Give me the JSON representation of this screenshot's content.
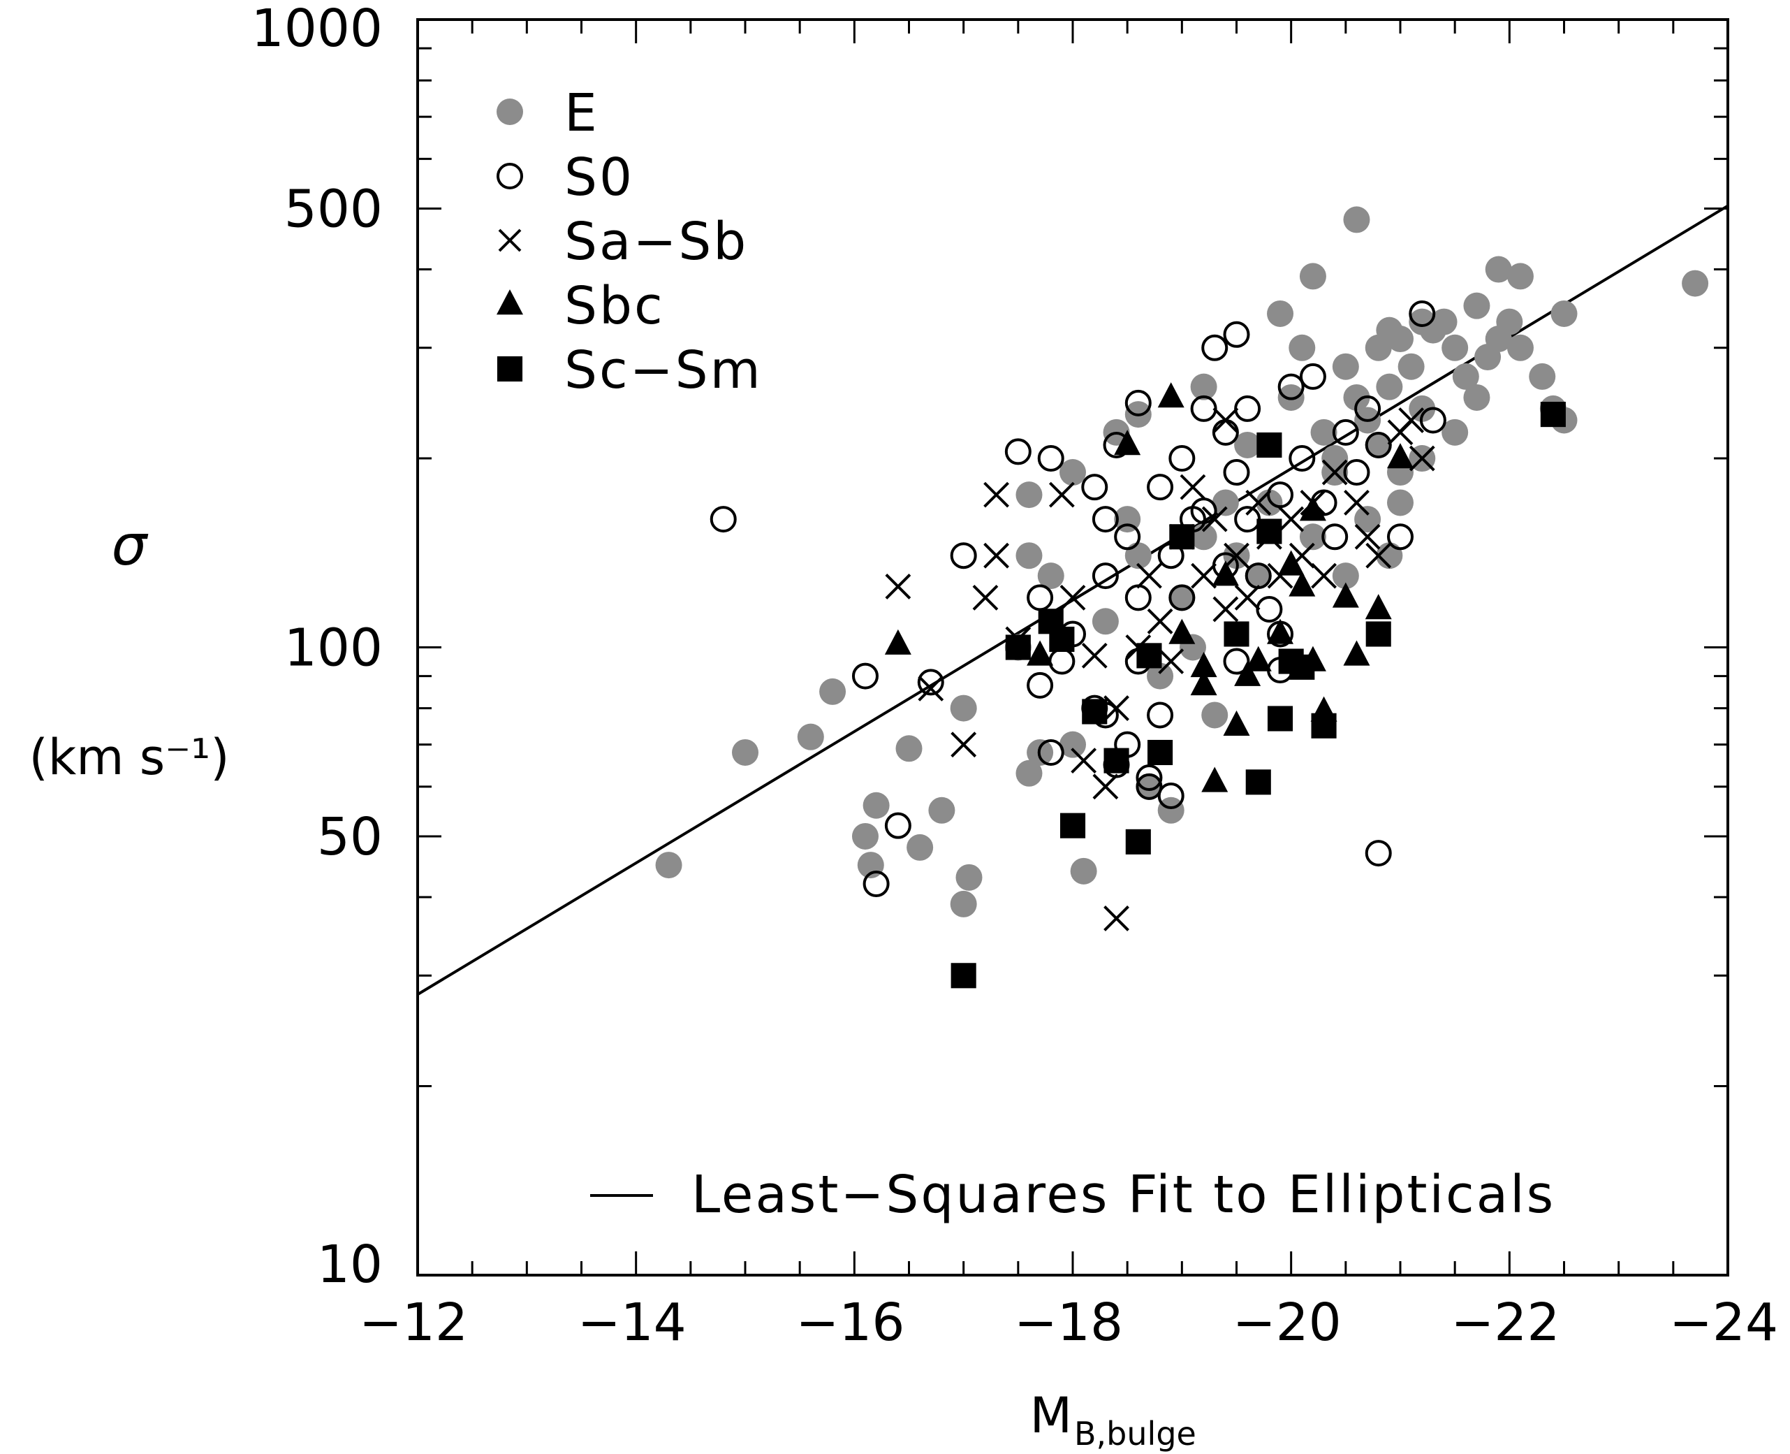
{
  "chart_data": {
    "type": "scatter",
    "title": "",
    "xlabel": "M",
    "xlabel_sub": "B,bulge",
    "ylabel": "σ",
    "ylabel_units": "(km s⁻¹)",
    "xlim": [
      -12,
      -24
    ],
    "ylim": [
      10,
      1000
    ],
    "y_scale": "log",
    "x_ticks": [
      -12,
      -14,
      -16,
      -18,
      -20,
      -22,
      -24
    ],
    "x_tick_labels": [
      "−12",
      "−14",
      "−16",
      "−18",
      "−20",
      "−22",
      "−24"
    ],
    "y_ticks": [
      10,
      50,
      100,
      500,
      1000
    ],
    "y_tick_labels": [
      "10",
      "50",
      "100",
      "500",
      "1000"
    ],
    "grid": false,
    "legend_position": "top-left",
    "colors": {
      "E": "#8c8c8c",
      "other": "#000000"
    },
    "series": [
      {
        "name": "E",
        "marker": "filled-circle",
        "points": [
          [
            -14.3,
            45
          ],
          [
            -15.0,
            68
          ],
          [
            -15.6,
            72
          ],
          [
            -15.8,
            85
          ],
          [
            -16.1,
            50
          ],
          [
            -16.2,
            56
          ],
          [
            -16.15,
            45
          ],
          [
            -16.5,
            69
          ],
          [
            -16.6,
            48
          ],
          [
            -16.8,
            55
          ],
          [
            -17.0,
            80
          ],
          [
            -17.0,
            39
          ],
          [
            -17.05,
            43
          ],
          [
            -17.6,
            63
          ],
          [
            -17.7,
            68
          ],
          [
            -18.0,
            70
          ],
          [
            -18.1,
            44
          ],
          [
            -17.5,
            100
          ],
          [
            -17.8,
            130
          ],
          [
            -17.6,
            140
          ],
          [
            -17.6,
            175
          ],
          [
            -18.0,
            190
          ],
          [
            -18.3,
            110
          ],
          [
            -18.4,
            220
          ],
          [
            -18.5,
            160
          ],
          [
            -18.6,
            140
          ],
          [
            -18.8,
            90
          ],
          [
            -18.7,
            60
          ],
          [
            -18.9,
            55
          ],
          [
            -19.0,
            120
          ],
          [
            -19.1,
            100
          ],
          [
            -19.2,
            150
          ],
          [
            -19.3,
            78
          ],
          [
            -19.5,
            140
          ],
          [
            -19.4,
            170
          ],
          [
            -19.6,
            210
          ],
          [
            -19.7,
            130
          ],
          [
            -19.8,
            170
          ],
          [
            -19.9,
            340
          ],
          [
            -20.0,
            250
          ],
          [
            -20.1,
            300
          ],
          [
            -20.2,
            150
          ],
          [
            -20.3,
            220
          ],
          [
            -20.4,
            190
          ],
          [
            -20.5,
            280
          ],
          [
            -20.6,
            250
          ],
          [
            -20.7,
            230
          ],
          [
            -20.8,
            300
          ],
          [
            -20.9,
            260
          ],
          [
            -21.0,
            310
          ],
          [
            -21.1,
            280
          ],
          [
            -21.2,
            240
          ],
          [
            -21.3,
            320
          ],
          [
            -21.4,
            330
          ],
          [
            -21.5,
            300
          ],
          [
            -21.6,
            270
          ],
          [
            -21.7,
            250
          ],
          [
            -21.8,
            290
          ],
          [
            -21.9,
            310
          ],
          [
            -22.0,
            330
          ],
          [
            -22.1,
            300
          ],
          [
            -22.3,
            270
          ],
          [
            -22.5,
            340
          ],
          [
            -22.4,
            240
          ],
          [
            -22.5,
            230
          ],
          [
            -21.9,
            400
          ],
          [
            -22.1,
            390
          ],
          [
            -20.6,
            480
          ],
          [
            -20.2,
            390
          ],
          [
            -21.0,
            190
          ],
          [
            -21.2,
            200
          ],
          [
            -21.5,
            220
          ],
          [
            -20.7,
            160
          ],
          [
            -21.0,
            170
          ],
          [
            -20.5,
            130
          ],
          [
            -20.9,
            140
          ],
          [
            -23.7,
            380
          ],
          [
            -21.7,
            350
          ],
          [
            -21.2,
            330
          ],
          [
            -20.9,
            320
          ],
          [
            -20.4,
            200
          ],
          [
            -20.8,
            210
          ],
          [
            -19.2,
            260
          ],
          [
            -18.6,
            235
          ]
        ]
      },
      {
        "name": "S0",
        "marker": "open-circle",
        "points": [
          [
            -14.8,
            160
          ],
          [
            -16.1,
            90
          ],
          [
            -16.2,
            42
          ],
          [
            -16.4,
            52
          ],
          [
            -16.7,
            88
          ],
          [
            -17.0,
            140
          ],
          [
            -17.5,
            205
          ],
          [
            -17.8,
            200
          ],
          [
            -17.7,
            120
          ],
          [
            -17.7,
            87
          ],
          [
            -17.9,
            95
          ],
          [
            -17.8,
            68
          ],
          [
            -18.0,
            105
          ],
          [
            -18.2,
            180
          ],
          [
            -18.3,
            160
          ],
          [
            -18.3,
            130
          ],
          [
            -18.2,
            80
          ],
          [
            -18.3,
            78
          ],
          [
            -18.4,
            210
          ],
          [
            -18.5,
            150
          ],
          [
            -18.6,
            120
          ],
          [
            -18.6,
            95
          ],
          [
            -18.5,
            70
          ],
          [
            -18.7,
            62
          ],
          [
            -18.8,
            78
          ],
          [
            -18.7,
            60
          ],
          [
            -18.8,
            180
          ],
          [
            -18.9,
            140
          ],
          [
            -19.0,
            120
          ],
          [
            -19.0,
            200
          ],
          [
            -19.1,
            160
          ],
          [
            -19.2,
            240
          ],
          [
            -19.3,
            300
          ],
          [
            -19.4,
            220
          ],
          [
            -19.5,
            190
          ],
          [
            -19.5,
            315
          ],
          [
            -19.6,
            240
          ],
          [
            -19.6,
            160
          ],
          [
            -19.7,
            130
          ],
          [
            -19.8,
            115
          ],
          [
            -19.9,
            105
          ],
          [
            -19.9,
            92
          ],
          [
            -20.0,
            260
          ],
          [
            -20.1,
            200
          ],
          [
            -20.2,
            270
          ],
          [
            -20.3,
            170
          ],
          [
            -20.4,
            150
          ],
          [
            -20.5,
            220
          ],
          [
            -20.6,
            190
          ],
          [
            -20.7,
            240
          ],
          [
            -20.8,
            210
          ],
          [
            -21.0,
            150
          ],
          [
            -21.2,
            340
          ],
          [
            -21.3,
            230
          ],
          [
            -20.8,
            47
          ],
          [
            -18.9,
            58
          ],
          [
            -18.4,
            65
          ],
          [
            -19.5,
            95
          ],
          [
            -19.2,
            165
          ],
          [
            -18.6,
            245
          ],
          [
            -19.9,
            175
          ],
          [
            -19.4,
            135
          ]
        ]
      },
      {
        "name": "Sa-Sb",
        "marker": "cross",
        "points": [
          [
            -16.4,
            125
          ],
          [
            -16.7,
            86
          ],
          [
            -17.0,
            70
          ],
          [
            -17.2,
            120
          ],
          [
            -17.3,
            140
          ],
          [
            -17.3,
            175
          ],
          [
            -17.5,
            103
          ],
          [
            -17.9,
            175
          ],
          [
            -18.0,
            120
          ],
          [
            -18.1,
            66
          ],
          [
            -18.2,
            97
          ],
          [
            -18.3,
            60
          ],
          [
            -18.4,
            80
          ],
          [
            -18.6,
            100
          ],
          [
            -18.7,
            130
          ],
          [
            -18.8,
            110
          ],
          [
            -19.0,
            150
          ],
          [
            -19.1,
            180
          ],
          [
            -19.2,
            130
          ],
          [
            -19.3,
            160
          ],
          [
            -19.4,
            115
          ],
          [
            -19.5,
            140
          ],
          [
            -19.6,
            120
          ],
          [
            -19.7,
            170
          ],
          [
            -19.8,
            150
          ],
          [
            -19.9,
            130
          ],
          [
            -20.0,
            160
          ],
          [
            -20.1,
            140
          ],
          [
            -20.2,
            170
          ],
          [
            -20.3,
            130
          ],
          [
            -20.4,
            190
          ],
          [
            -20.6,
            170
          ],
          [
            -20.7,
            150
          ],
          [
            -20.8,
            140
          ],
          [
            -21.0,
            220
          ],
          [
            -21.1,
            230
          ],
          [
            -21.2,
            200
          ],
          [
            -18.4,
            37
          ],
          [
            -19.4,
            230
          ],
          [
            -18.9,
            95
          ]
        ]
      },
      {
        "name": "Sbc",
        "marker": "filled-triangle",
        "points": [
          [
            -16.4,
            101
          ],
          [
            -17.7,
            97
          ],
          [
            -18.5,
            210
          ],
          [
            -18.9,
            250
          ],
          [
            -19.0,
            105
          ],
          [
            -19.2,
            93
          ],
          [
            -19.2,
            87
          ],
          [
            -19.3,
            61
          ],
          [
            -19.4,
            130
          ],
          [
            -19.5,
            75
          ],
          [
            -19.6,
            90
          ],
          [
            -19.7,
            95
          ],
          [
            -19.9,
            105
          ],
          [
            -20.0,
            135
          ],
          [
            -20.1,
            125
          ],
          [
            -20.2,
            95
          ],
          [
            -20.2,
            165
          ],
          [
            -20.3,
            79
          ],
          [
            -20.5,
            120
          ],
          [
            -20.6,
            97
          ],
          [
            -20.8,
            115
          ],
          [
            -21.0,
            200
          ]
        ]
      },
      {
        "name": "Sc-Sm",
        "marker": "filled-square",
        "points": [
          [
            -17.0,
            30
          ],
          [
            -17.5,
            100
          ],
          [
            -17.8,
            110
          ],
          [
            -17.9,
            103
          ],
          [
            -18.0,
            52
          ],
          [
            -18.2,
            79
          ],
          [
            -18.4,
            66
          ],
          [
            -18.6,
            49
          ],
          [
            -18.7,
            97
          ],
          [
            -18.8,
            68
          ],
          [
            -19.0,
            150
          ],
          [
            -19.5,
            105
          ],
          [
            -19.7,
            61
          ],
          [
            -19.8,
            210
          ],
          [
            -19.8,
            153
          ],
          [
            -19.9,
            77
          ],
          [
            -20.0,
            95
          ],
          [
            -20.1,
            93
          ],
          [
            -20.3,
            75
          ],
          [
            -20.8,
            105
          ],
          [
            -22.4,
            235
          ]
        ]
      }
    ],
    "fit_line": {
      "label": "Least−Squares Fit to Ellipticals",
      "x": [
        -12,
        -24
      ],
      "y": [
        28,
        505
      ]
    }
  }
}
